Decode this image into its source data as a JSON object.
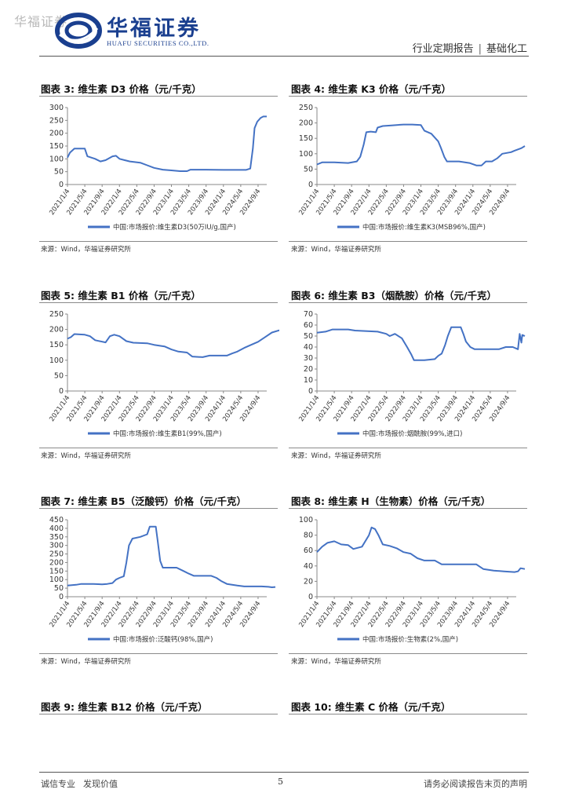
{
  "watermark": "华福证券",
  "logo": {
    "cn": "华福证券",
    "en": "HUAFU SECURITIES CO.,LTD."
  },
  "header": {
    "report_type": "行业定期报告",
    "sector": "基础化工"
  },
  "colors": {
    "series": "#4472c4",
    "axis": "#888888",
    "brand": "#1a3f8f"
  },
  "chart_data": [
    {
      "id": "fig3",
      "type": "line",
      "figure_title": "图表 3:  维生素 D3 价格（元/千克）",
      "legend": "中国:市场报价:维生素D3(50万IU/g,国产)",
      "source": "来源：Wind，华福证券研究所",
      "x_labels": [
        "2021/1/4",
        "2021/5/4",
        "2021/9/4",
        "2022/1/4",
        "2022/5/4",
        "2022/9/4",
        "2023/1/4",
        "2023/5/4",
        "2023/9/4",
        "2024/1/4",
        "2024/5/4",
        "2024/9/4"
      ],
      "y_ticks": [
        0,
        50,
        100,
        150,
        200,
        250,
        300
      ],
      "ylim": [
        0,
        300
      ],
      "points": [
        [
          0,
          105
        ],
        [
          0.15,
          125
        ],
        [
          0.4,
          140
        ],
        [
          1.0,
          140
        ],
        [
          1.15,
          110
        ],
        [
          1.6,
          100
        ],
        [
          1.9,
          90
        ],
        [
          2.2,
          95
        ],
        [
          2.6,
          110
        ],
        [
          2.8,
          112
        ],
        [
          3.0,
          100
        ],
        [
          3.3,
          95
        ],
        [
          3.6,
          90
        ],
        [
          4.2,
          85
        ],
        [
          4.6,
          75
        ],
        [
          5.0,
          65
        ],
        [
          5.5,
          58
        ],
        [
          6.0,
          55
        ],
        [
          6.5,
          52
        ],
        [
          6.9,
          52
        ],
        [
          7.1,
          58
        ],
        [
          8.0,
          58
        ],
        [
          9.0,
          57
        ],
        [
          9.8,
          57
        ],
        [
          10.3,
          57
        ],
        [
          10.55,
          62
        ],
        [
          10.7,
          140
        ],
        [
          10.8,
          220
        ],
        [
          10.95,
          245
        ],
        [
          11.15,
          260
        ],
        [
          11.3,
          265
        ],
        [
          11.5,
          265
        ]
      ]
    },
    {
      "id": "fig4",
      "type": "line",
      "figure_title": "图表 4:  维生素 K3 价格（元/千克）",
      "legend": "中国:市场报价:维生素K3(MSB96%,国产)",
      "source": "来源：Wind，华福证券研究所",
      "x_labels": [
        "2021/1/4",
        "2021/5/4",
        "2021/9/4",
        "2022/1/4",
        "2022/5/4",
        "2022/9/4",
        "2023/1/4",
        "2023/5/4",
        "2023/9/4",
        "2024/1/4",
        "2024/5/4",
        "2024/9/4"
      ],
      "y_ticks": [
        0,
        50,
        100,
        150,
        200,
        250
      ],
      "ylim": [
        0,
        250
      ],
      "points": [
        [
          0,
          65
        ],
        [
          0.3,
          72
        ],
        [
          1.0,
          72
        ],
        [
          1.8,
          70
        ],
        [
          2.3,
          75
        ],
        [
          2.5,
          90
        ],
        [
          2.7,
          130
        ],
        [
          2.85,
          170
        ],
        [
          3.1,
          172
        ],
        [
          3.4,
          170
        ],
        [
          3.5,
          185
        ],
        [
          3.8,
          190
        ],
        [
          4.3,
          192
        ],
        [
          5.0,
          195
        ],
        [
          5.5,
          195
        ],
        [
          6.0,
          193
        ],
        [
          6.2,
          175
        ],
        [
          6.6,
          165
        ],
        [
          7.0,
          140
        ],
        [
          7.15,
          120
        ],
        [
          7.35,
          90
        ],
        [
          7.5,
          75
        ],
        [
          8.2,
          75
        ],
        [
          8.8,
          70
        ],
        [
          9.2,
          62
        ],
        [
          9.5,
          62
        ],
        [
          9.75,
          75
        ],
        [
          10.1,
          75
        ],
        [
          10.4,
          85
        ],
        [
          10.7,
          100
        ],
        [
          11.2,
          105
        ],
        [
          11.4,
          110
        ],
        [
          11.8,
          118
        ],
        [
          12.0,
          125
        ]
      ]
    },
    {
      "id": "fig5",
      "type": "line",
      "figure_title": "图表 5:  维生素 B1 价格（元/千克）",
      "legend": "中国:市场报价:维生素B1(99%,国产)",
      "source": "来源：Wind，华福证券研究所",
      "x_labels": [
        "2021/1/4",
        "2021/5/4",
        "2021/9/4",
        "2022/1/4",
        "2022/5/4",
        "2022/9/4",
        "2023/1/4",
        "2023/5/4",
        "2023/9/4",
        "2024/1/4",
        "2024/5/4",
        "2024/9/4"
      ],
      "y_ticks": [
        0,
        50,
        100,
        150,
        200,
        250
      ],
      "ylim": [
        0,
        250
      ],
      "points": [
        [
          0,
          170
        ],
        [
          0.2,
          175
        ],
        [
          0.4,
          185
        ],
        [
          1.0,
          183
        ],
        [
          1.3,
          178
        ],
        [
          1.6,
          165
        ],
        [
          2.2,
          158
        ],
        [
          2.45,
          178
        ],
        [
          2.7,
          183
        ],
        [
          3.0,
          178
        ],
        [
          3.4,
          162
        ],
        [
          3.8,
          157
        ],
        [
          4.6,
          155
        ],
        [
          5.0,
          150
        ],
        [
          5.6,
          145
        ],
        [
          6.0,
          135
        ],
        [
          6.4,
          128
        ],
        [
          6.9,
          125
        ],
        [
          7.2,
          112
        ],
        [
          7.8,
          110
        ],
        [
          8.2,
          115
        ],
        [
          9.2,
          115
        ],
        [
          9.5,
          122
        ],
        [
          9.8,
          128
        ],
        [
          10.2,
          140
        ],
        [
          10.6,
          150
        ],
        [
          11.0,
          160
        ],
        [
          11.4,
          175
        ],
        [
          11.8,
          190
        ],
        [
          12.2,
          197
        ],
        [
          12.5,
          200
        ]
      ]
    },
    {
      "id": "fig6",
      "type": "line",
      "figure_title": "图表 6:  维生素 B3（烟酰胺）价格（元/千克）",
      "legend": "中国:市场报价:烟酰胺(99%,进口)",
      "source": "来源：Wind，华福证券研究所",
      "x_labels": [
        "2021/1/4",
        "2021/5/4",
        "2021/9/4",
        "2022/1/4",
        "2022/5/4",
        "2022/9/4",
        "2023/1/4",
        "2023/5/4",
        "2023/9/4",
        "2024/1/4",
        "2024/5/4",
        "2024/9/4"
      ],
      "y_ticks": [
        0,
        10,
        20,
        30,
        40,
        50,
        60,
        70
      ],
      "ylim": [
        0,
        70
      ],
      "points": [
        [
          0,
          53
        ],
        [
          0.5,
          54
        ],
        [
          0.9,
          56
        ],
        [
          1.8,
          56
        ],
        [
          2.2,
          55
        ],
        [
          3.5,
          54
        ],
        [
          4.0,
          52
        ],
        [
          4.2,
          50
        ],
        [
          4.5,
          52
        ],
        [
          4.9,
          48
        ],
        [
          5.2,
          40
        ],
        [
          5.45,
          33
        ],
        [
          5.6,
          28
        ],
        [
          6.2,
          28
        ],
        [
          6.8,
          29
        ],
        [
          7.0,
          32
        ],
        [
          7.2,
          34
        ],
        [
          7.4,
          42
        ],
        [
          7.55,
          50
        ],
        [
          7.75,
          58
        ],
        [
          8.3,
          58
        ],
        [
          8.45,
          52
        ],
        [
          8.6,
          45
        ],
        [
          8.85,
          40
        ],
        [
          9.1,
          38
        ],
        [
          10.5,
          38
        ],
        [
          10.9,
          40
        ],
        [
          11.3,
          40
        ],
        [
          11.6,
          38
        ],
        [
          11.7,
          52
        ],
        [
          11.8,
          44
        ],
        [
          11.85,
          51
        ],
        [
          12.0,
          50
        ]
      ]
    },
    {
      "id": "fig7",
      "type": "line",
      "figure_title": "图表 7:  维生素 B5（泛酸钙）价格（元/千克）",
      "legend": "中国:市场报价:泛酸钙(98%,国产)",
      "source": "来源：Wind，华福证券研究所",
      "x_labels": [
        "2021/1/4",
        "2021/5/4",
        "2021/9/4",
        "2022/1/4",
        "2022/5/4",
        "2022/9/4",
        "2023/1/4",
        "2023/5/4",
        "2023/9/4",
        "2024/1/4",
        "2024/5/4",
        "2024/9/4"
      ],
      "y_ticks": [
        0,
        50,
        100,
        150,
        200,
        250,
        300,
        350,
        400,
        450
      ],
      "ylim": [
        0,
        450
      ],
      "points": [
        [
          0,
          65
        ],
        [
          0.5,
          70
        ],
        [
          0.8,
          75
        ],
        [
          1.5,
          75
        ],
        [
          2.0,
          72
        ],
        [
          2.3,
          75
        ],
        [
          2.6,
          80
        ],
        [
          2.8,
          100
        ],
        [
          3.0,
          110
        ],
        [
          3.25,
          120
        ],
        [
          3.4,
          200
        ],
        [
          3.55,
          300
        ],
        [
          3.75,
          340
        ],
        [
          4.2,
          350
        ],
        [
          4.6,
          365
        ],
        [
          4.75,
          410
        ],
        [
          5.1,
          410
        ],
        [
          5.2,
          330
        ],
        [
          5.35,
          210
        ],
        [
          5.5,
          170
        ],
        [
          6.3,
          170
        ],
        [
          6.7,
          150
        ],
        [
          7.0,
          135
        ],
        [
          7.3,
          122
        ],
        [
          8.3,
          122
        ],
        [
          8.6,
          110
        ],
        [
          8.9,
          90
        ],
        [
          9.2,
          75
        ],
        [
          9.8,
          65
        ],
        [
          10.2,
          60
        ],
        [
          11.2,
          60
        ],
        [
          11.6,
          58
        ],
        [
          11.8,
          55
        ],
        [
          12.0,
          57
        ]
      ]
    },
    {
      "id": "fig8",
      "type": "line",
      "figure_title": "图表 8:  维生素 H（生物素）价格（元/千克）",
      "legend": "中国:市场报价:生物素(2%,国产)",
      "source": "来源：Wind，华福证券研究所",
      "x_labels": [
        "2021/1/4",
        "2021/5/4",
        "2021/9/4",
        "2022/1/4",
        "2022/5/4",
        "2022/9/4",
        "2023/1/4",
        "2023/5/4",
        "2023/9/4",
        "2024/1/4",
        "2024/5/4",
        "2024/9/4"
      ],
      "y_ticks": [
        0,
        20,
        40,
        60,
        80,
        100
      ],
      "ylim": [
        0,
        100
      ],
      "points": [
        [
          0,
          58
        ],
        [
          0.3,
          65
        ],
        [
          0.6,
          70
        ],
        [
          1.0,
          72
        ],
        [
          1.4,
          68
        ],
        [
          1.8,
          67
        ],
        [
          2.1,
          62
        ],
        [
          2.6,
          65
        ],
        [
          3.0,
          80
        ],
        [
          3.15,
          90
        ],
        [
          3.35,
          88
        ],
        [
          3.55,
          80
        ],
        [
          3.8,
          68
        ],
        [
          4.2,
          66
        ],
        [
          4.6,
          63
        ],
        [
          5.0,
          58
        ],
        [
          5.4,
          56
        ],
        [
          5.8,
          50
        ],
        [
          6.2,
          47
        ],
        [
          6.8,
          47
        ],
        [
          7.2,
          42
        ],
        [
          8.5,
          42
        ],
        [
          9.2,
          42
        ],
        [
          9.6,
          36
        ],
        [
          10.2,
          34
        ],
        [
          10.8,
          33
        ],
        [
          11.4,
          32
        ],
        [
          11.6,
          33
        ],
        [
          11.75,
          37
        ],
        [
          12.0,
          36
        ]
      ]
    }
  ],
  "fig9_title": "图表 9:  维生素 B12 价格（元/千克）",
  "fig10_title": "图表 10:  维生素 C 价格（元/千克）",
  "footer": {
    "motto1": "诚信专业",
    "motto2": "发现价值",
    "page": "5",
    "disclaimer": "请务必阅读报告末页的声明"
  }
}
